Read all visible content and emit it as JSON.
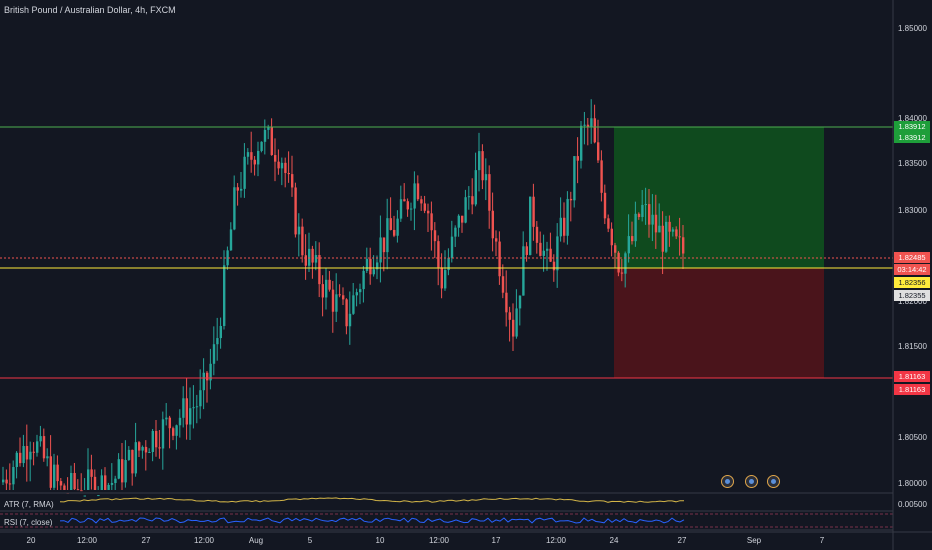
{
  "header": {
    "title": "British Pound / Australian Dollar, 4h, FXCM"
  },
  "indicators": {
    "atr": "ATR (7, RMA)",
    "rsi": "RSI (7, close)",
    "atr_value": "0.00500"
  },
  "price_axis": {
    "ticks": [
      "1.85000",
      "1.84000",
      "1.83500",
      "1.83000",
      "1.82000",
      "1.81500",
      "1.80500",
      "1.80000"
    ]
  },
  "price_tags": {
    "top_level": "1.83912",
    "top_level_dup": "1.83912",
    "last_price": "1.82485",
    "countdown": "03:14:42",
    "entry_level": "1.82356",
    "entry_level_2": "1.82355",
    "stop_level": "1.81163",
    "stop_level_dup": "1.81163"
  },
  "time_axis": {
    "ticks": [
      "20",
      "12:00",
      "27",
      "12:00",
      "Aug",
      "5",
      "10",
      "12:00",
      "17",
      "12:00",
      "24",
      "27",
      "Sep",
      "7"
    ]
  },
  "colors": {
    "background": "#131722",
    "up": "#26a69a",
    "down": "#ef5350",
    "resistance": "#4caf50",
    "support_yellow": "#ffeb3b",
    "stop_red": "#f23645",
    "profit_zone": "#0f4a1e",
    "loss_zone": "#4a141b",
    "atr_line": "#d4b648",
    "rsi_line": "#2962ff"
  },
  "events": [
    "economic-event-icon",
    "economic-event-icon",
    "economic-event-icon"
  ]
}
